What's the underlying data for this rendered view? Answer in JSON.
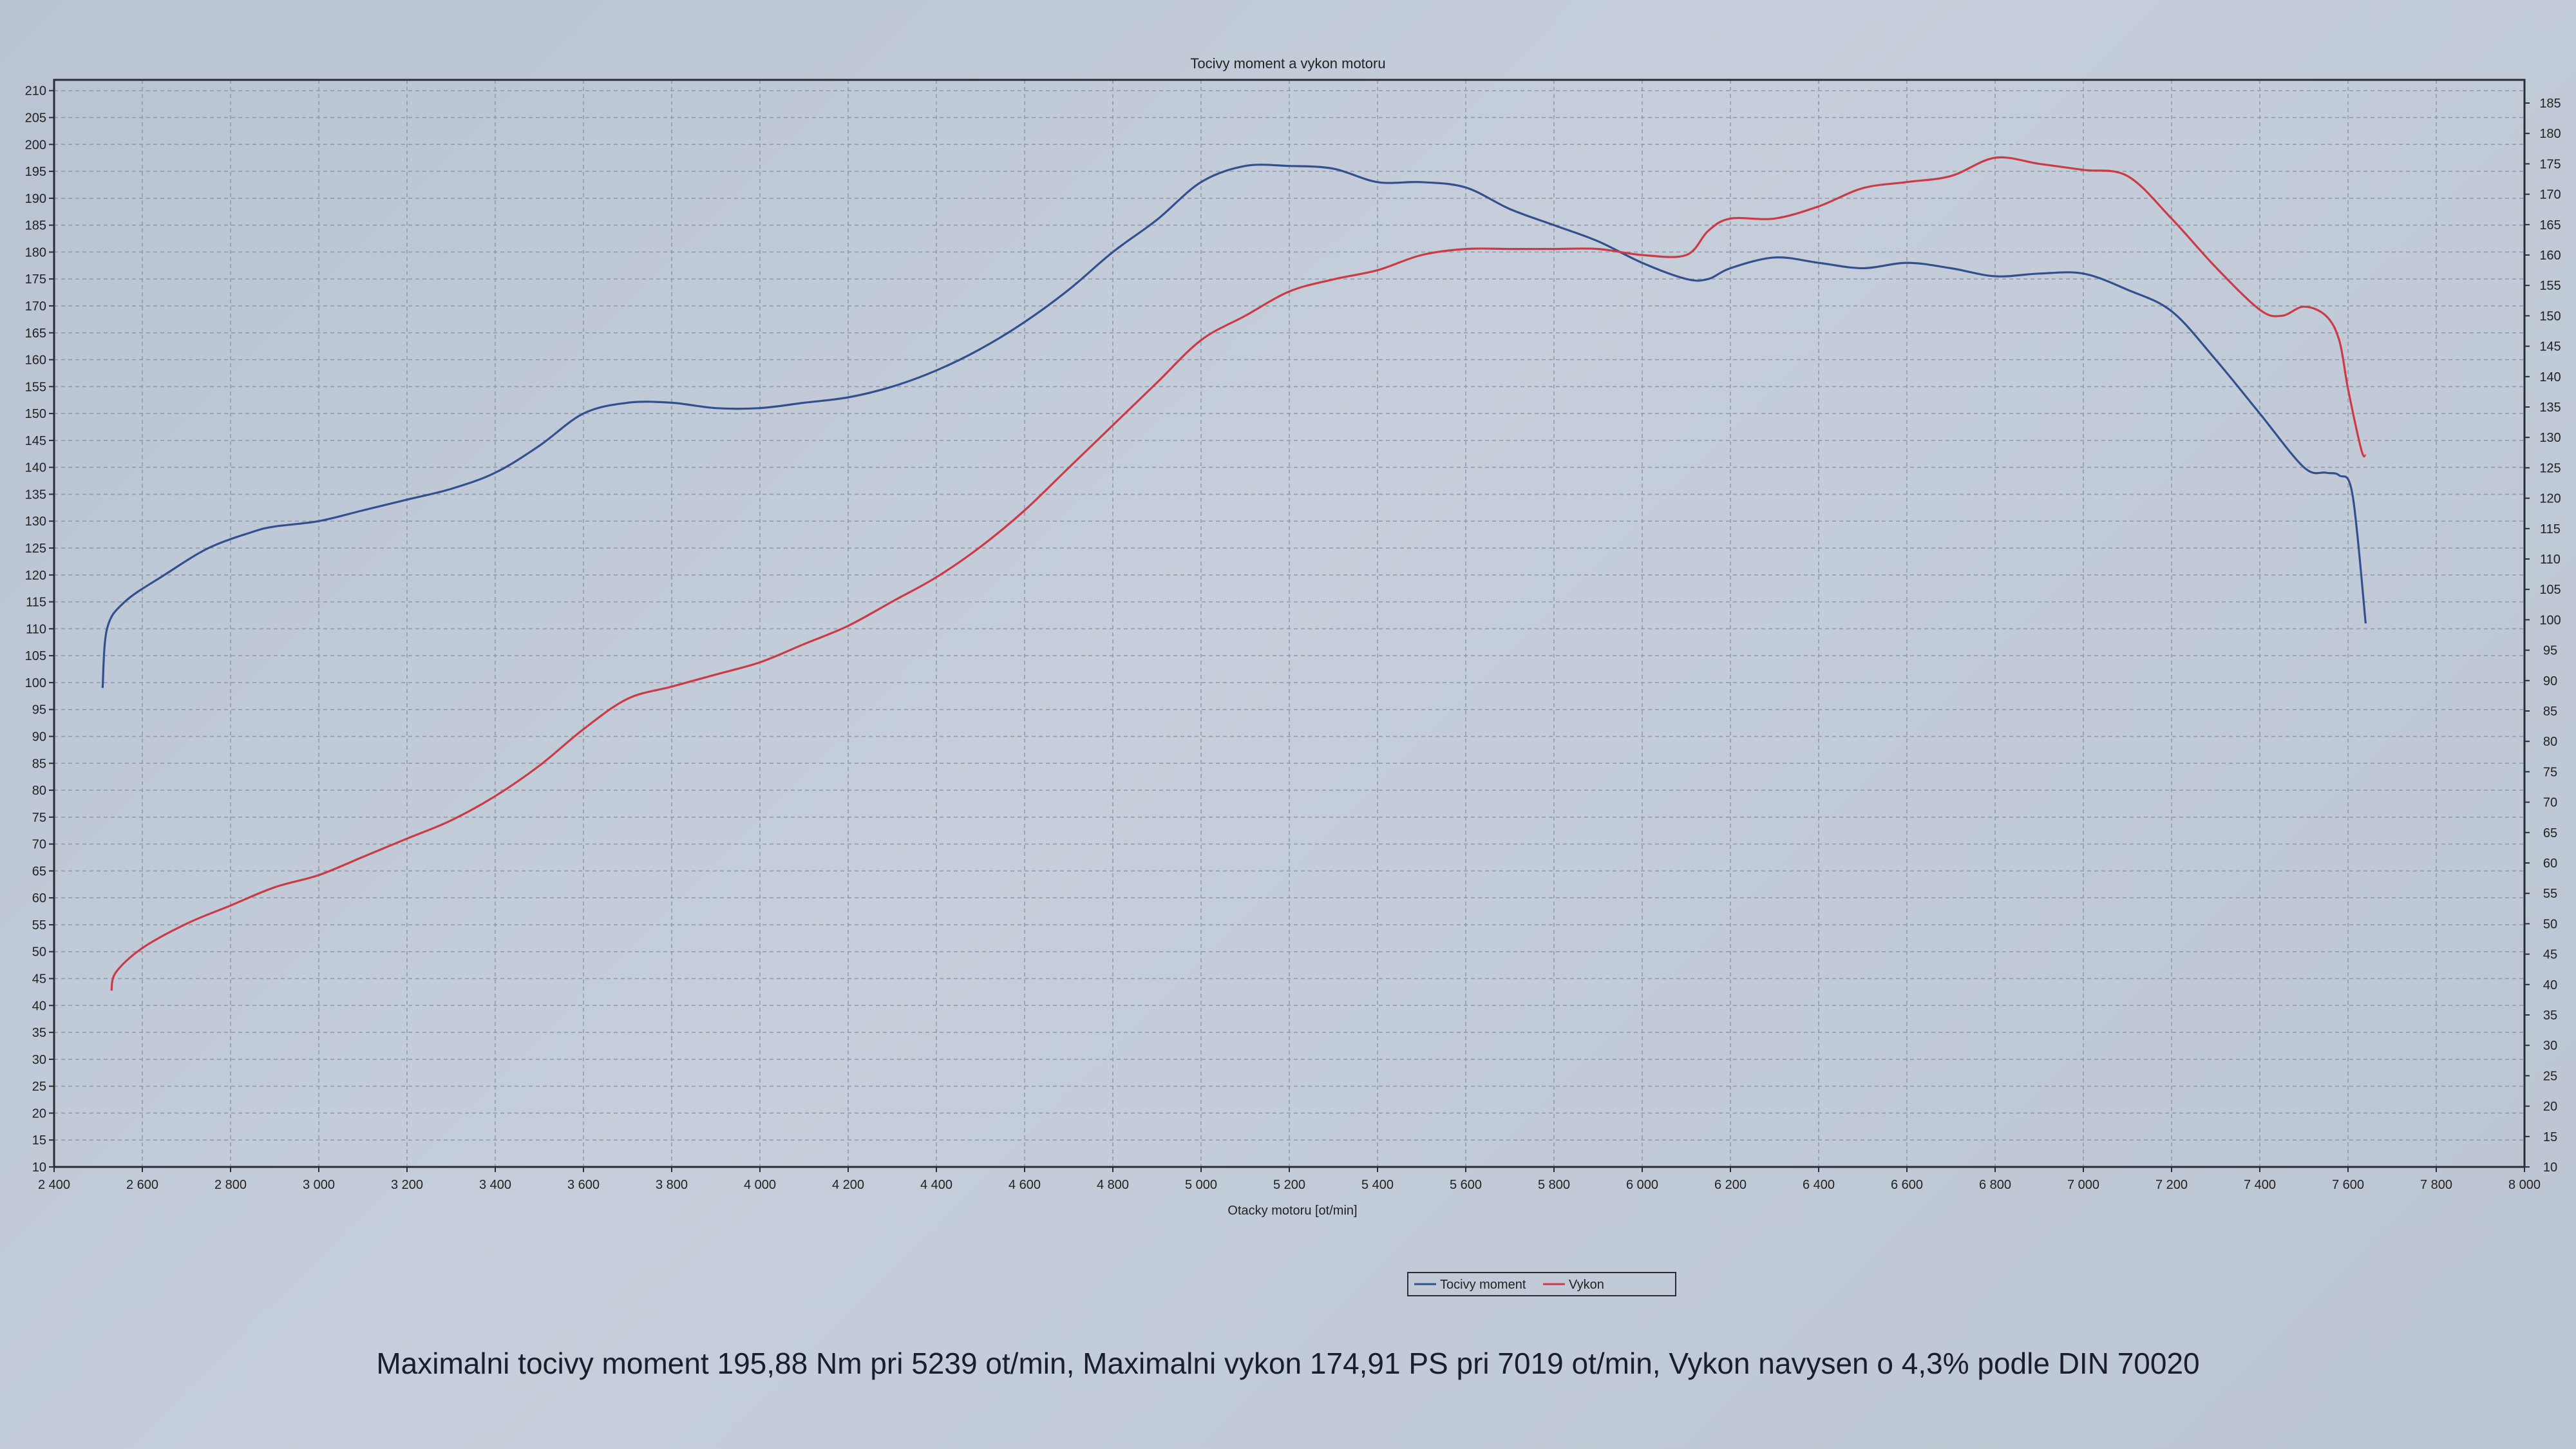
{
  "chart_data": {
    "type": "line",
    "title": "Tocivy moment a vykon motoru",
    "xlabel": "Otacky motoru [ot/min]",
    "x_ticks": [
      "2 400",
      "2 600",
      "2 800",
      "3 000",
      "3 200",
      "3 400",
      "3 600",
      "3 800",
      "4 000",
      "4 200",
      "4 400",
      "4 600",
      "4 800",
      "5 000",
      "5 200",
      "5 400",
      "5 600",
      "5 800",
      "6 000",
      "6 200",
      "6 400",
      "6 600",
      "6 800",
      "7 000",
      "7 200",
      "7 400",
      "7 600",
      "7 800",
      "8 000"
    ],
    "xlim": [
      2400,
      8000
    ],
    "ylim_left": [
      10,
      210
    ],
    "ylim_right": [
      10,
      185
    ],
    "left_ticks": [
      "10",
      "15",
      "20",
      "25",
      "30",
      "35",
      "40",
      "45",
      "50",
      "55",
      "60",
      "65",
      "70",
      "75",
      "80",
      "85",
      "90",
      "95",
      "100",
      "105",
      "110",
      "115",
      "120",
      "125",
      "130",
      "135",
      "140",
      "145",
      "150",
      "155",
      "160",
      "165",
      "170",
      "175",
      "180",
      "185",
      "190",
      "195",
      "200",
      "205",
      "210"
    ],
    "right_ticks": [
      "10",
      "15",
      "20",
      "25",
      "30",
      "35",
      "40",
      "45",
      "50",
      "55",
      "60",
      "65",
      "70",
      "75",
      "80",
      "85",
      "90",
      "95",
      "100",
      "105",
      "110",
      "115",
      "120",
      "125",
      "130",
      "135",
      "140",
      "145",
      "150",
      "155",
      "160",
      "165",
      "170",
      "175",
      "180",
      "185"
    ],
    "grid": true,
    "legend_position": "bottom-center",
    "series": [
      {
        "name": "Tocivy moment",
        "color": "#33508e",
        "axis": "left",
        "x": [
          2510,
          2520,
          2560,
          2650,
          2750,
          2850,
          2900,
          3000,
          3100,
          3200,
          3300,
          3400,
          3500,
          3600,
          3700,
          3800,
          3900,
          4000,
          4100,
          4200,
          4300,
          4400,
          4500,
          4600,
          4700,
          4800,
          4900,
          5000,
          5100,
          5200,
          5300,
          5400,
          5500,
          5600,
          5700,
          5800,
          5900,
          6000,
          6100,
          6150,
          6200,
          6300,
          6400,
          6500,
          6600,
          6700,
          6800,
          6900,
          7000,
          7100,
          7200,
          7300,
          7400,
          7500,
          7550,
          7580,
          7610,
          7640
        ],
        "y": [
          99,
          110,
          115,
          120,
          125,
          128,
          129,
          130,
          132,
          134,
          136,
          139,
          144,
          150,
          152,
          152,
          151,
          151,
          152,
          153,
          155,
          158,
          162,
          167,
          173,
          180,
          186,
          193,
          196,
          196,
          195.5,
          193,
          193,
          192,
          188,
          185,
          182,
          178,
          175,
          175,
          177,
          179,
          178,
          177,
          178,
          177,
          175.5,
          176,
          176,
          173,
          169,
          160,
          150,
          140,
          139,
          138.5,
          135,
          111
        ]
      },
      {
        "name": "Vykon",
        "color": "#cc3a45",
        "axis": "right",
        "x": [
          2530,
          2540,
          2600,
          2700,
          2800,
          2900,
          3000,
          3100,
          3200,
          3300,
          3400,
          3500,
          3600,
          3700,
          3800,
          3900,
          4000,
          4100,
          4200,
          4300,
          4400,
          4500,
          4600,
          4700,
          4800,
          4900,
          5000,
          5100,
          5200,
          5300,
          5400,
          5500,
          5600,
          5700,
          5800,
          5900,
          6000,
          6100,
          6150,
          6200,
          6300,
          6400,
          6500,
          6600,
          6700,
          6800,
          6900,
          7000,
          7100,
          7200,
          7300,
          7400,
          7450,
          7500,
          7550,
          7580,
          7600,
          7630,
          7640
        ],
        "y": [
          39,
          42,
          46,
          50,
          53,
          56,
          58,
          61,
          64,
          67,
          71,
          76,
          82,
          87,
          89,
          91,
          93,
          96,
          99,
          103,
          107,
          112,
          118,
          125,
          132,
          139,
          146,
          150,
          154,
          156,
          157.5,
          160,
          161,
          161,
          161,
          161,
          160,
          160,
          164,
          166,
          166,
          168,
          171,
          172,
          173,
          176,
          175,
          174,
          173,
          166,
          158,
          151,
          150,
          151.5,
          150,
          146,
          138,
          128,
          127
        ]
      }
    ]
  },
  "footer": "Maximalni tocivy moment 195,88 Nm pri 5239 ot/min,  Maximalni vykon 174,91 PS pri 7019 ot/min,  Vykon navysen o 4,3% podle DIN 70020"
}
